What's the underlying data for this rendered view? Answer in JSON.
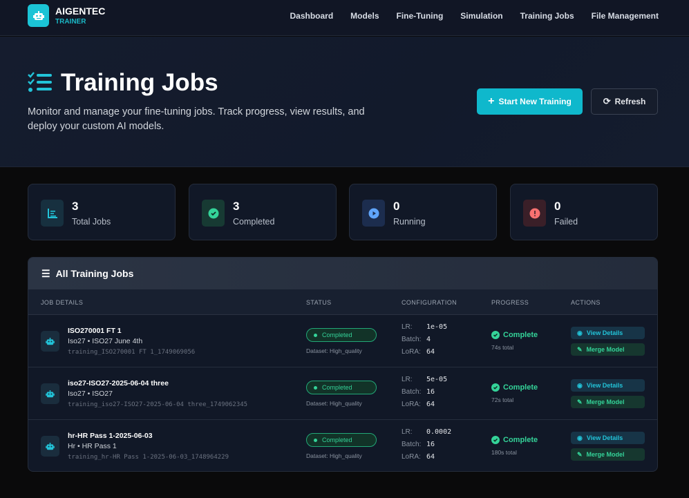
{
  "nav": {
    "brand": "AIGENTEC",
    "brand_sub": "TRAINER",
    "links": [
      "Dashboard",
      "Models",
      "Fine-Tuning",
      "Simulation",
      "Training Jobs",
      "File Management"
    ]
  },
  "hero": {
    "title": "Training Jobs",
    "subtitle": "Monitor and manage your fine-tuning jobs. Track progress, view results, and deploy your custom AI models.",
    "start_label": "Start New Training",
    "refresh_label": "Refresh"
  },
  "stats": [
    {
      "value": "3",
      "label": "Total Jobs",
      "icon": "chart-icon",
      "color": "#22c3d8"
    },
    {
      "value": "3",
      "label": "Completed",
      "icon": "check-circle-icon",
      "color": "#34d399"
    },
    {
      "value": "0",
      "label": "Running",
      "icon": "play-circle-icon",
      "color": "#60a5fa"
    },
    {
      "value": "0",
      "label": "Failed",
      "icon": "exclamation-circle-icon",
      "color": "#f87171"
    }
  ],
  "table": {
    "title": "All Training Jobs",
    "columns": [
      "JOB DETAILS",
      "STATUS",
      "CONFIGURATION",
      "PROGRESS",
      "ACTIONS"
    ],
    "labels": {
      "lr": "LR:",
      "batch": "Batch:",
      "lora": "LoRA:",
      "view": "View Details",
      "merge": "Merge Model"
    },
    "rows": [
      {
        "name": "ISO270001 FT 1",
        "meta": "Iso27 • ISO27 June 4th",
        "id": "training_ISO270001 FT 1_1749069056",
        "status": "Completed",
        "dataset": "Dataset: High_quality",
        "lr": "1e-05",
        "batch": "4",
        "lora": "64",
        "progress": "Complete",
        "total": "74s total"
      },
      {
        "name": "iso27-ISO27-2025-06-04 three",
        "meta": "Iso27 • ISO27",
        "id": "training_iso27-ISO27-2025-06-04 three_1749062345",
        "status": "Completed",
        "dataset": "Dataset: High_quality",
        "lr": "5e-05",
        "batch": "16",
        "lora": "64",
        "progress": "Complete",
        "total": "72s total"
      },
      {
        "name": "hr-HR Pass 1-2025-06-03",
        "meta": "Hr • HR Pass 1",
        "id": "training_hr-HR Pass 1-2025-06-03_1748964229",
        "status": "Completed",
        "dataset": "Dataset: High_quality",
        "lr": "0.0002",
        "batch": "16",
        "lora": "64",
        "progress": "Complete",
        "total": "180s total"
      }
    ]
  }
}
